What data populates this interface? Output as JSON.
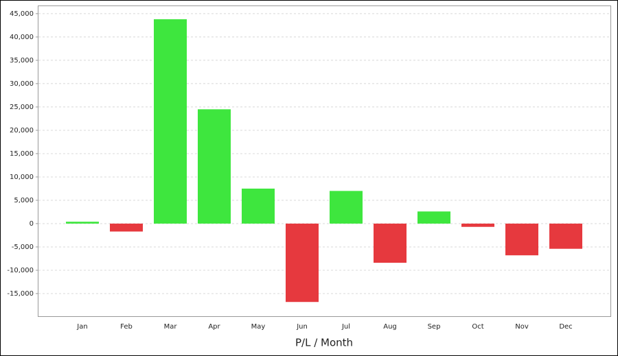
{
  "chart_data": {
    "type": "bar",
    "x_label": "P/L / Month",
    "categories": [
      "Jan",
      "Feb",
      "Mar",
      "Apr",
      "May",
      "Jun",
      "Jul",
      "Aug",
      "Sep",
      "Oct",
      "Nov",
      "Dec"
    ],
    "values": [
      400,
      -1700,
      43800,
      24500,
      7500,
      -16800,
      7000,
      -8400,
      2600,
      -700,
      -6800,
      -5400
    ],
    "positive_color": "#3ee63e",
    "negative_color": "#e6393e",
    "ylim": [
      -20000,
      46750
    ],
    "yticks": [
      {
        "value": -15000,
        "label": "-15,000"
      },
      {
        "value": -10000,
        "label": "-10,000"
      },
      {
        "value": -5000,
        "label": "-5,000"
      },
      0,
      {
        "value": 5000,
        "label": "5,000"
      },
      {
        "value": 10000,
        "label": "10,000"
      },
      {
        "value": 15000,
        "label": "15,000"
      },
      {
        "value": 20000,
        "label": "20,000"
      },
      {
        "value": 25000,
        "label": "25,000"
      },
      {
        "value": 30000,
        "label": "30,000"
      },
      {
        "value": 35000,
        "label": "35,000"
      },
      {
        "value": 40000,
        "label": "40,000"
      },
      {
        "value": 45000,
        "label": "45,000"
      }
    ],
    "grid": true
  }
}
